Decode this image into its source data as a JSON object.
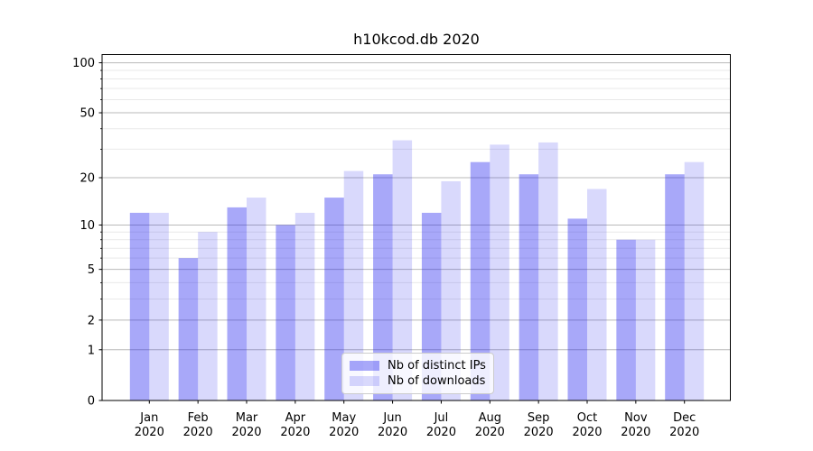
{
  "chart_data": {
    "type": "bar",
    "title": "h10kcod.db 2020",
    "categories": [
      {
        "month": "Jan",
        "year": "2020"
      },
      {
        "month": "Feb",
        "year": "2020"
      },
      {
        "month": "Mar",
        "year": "2020"
      },
      {
        "month": "Apr",
        "year": "2020"
      },
      {
        "month": "May",
        "year": "2020"
      },
      {
        "month": "Jun",
        "year": "2020"
      },
      {
        "month": "Jul",
        "year": "2020"
      },
      {
        "month": "Aug",
        "year": "2020"
      },
      {
        "month": "Sep",
        "year": "2020"
      },
      {
        "month": "Oct",
        "year": "2020"
      },
      {
        "month": "Nov",
        "year": "2020"
      },
      {
        "month": "Dec",
        "year": "2020"
      }
    ],
    "series": [
      {
        "name": "Nb of distinct IPs",
        "color": "rgba(30,30,240,0.39)",
        "values": [
          12,
          6,
          13,
          10,
          15,
          21,
          12,
          25,
          21,
          11,
          8,
          21
        ]
      },
      {
        "name": "Nb of downloads",
        "color": "rgba(30,30,240,0.17)",
        "values": [
          12,
          9,
          15,
          12,
          22,
          34,
          19,
          32,
          33,
          17,
          8,
          25
        ]
      }
    ],
    "y_scale": "log10(1+v)",
    "y_ticks": [
      0,
      1,
      2,
      5,
      10,
      20,
      50,
      100
    ],
    "y_minor_gridlines": [
      3,
      4,
      6,
      7,
      8,
      9,
      30,
      40,
      60,
      70,
      80,
      90
    ],
    "ylim": [
      0,
      112
    ],
    "grid": true,
    "legend_position": "lower center",
    "colors": {
      "major_grid": "#b9b9b9",
      "minor_grid": "#e9e9e9",
      "spine": "#000000",
      "tick_text": "#000000",
      "background": "#ffffff",
      "legend_border": "#cccccc",
      "legend_background": "rgba(255,255,255,0.8)"
    }
  }
}
